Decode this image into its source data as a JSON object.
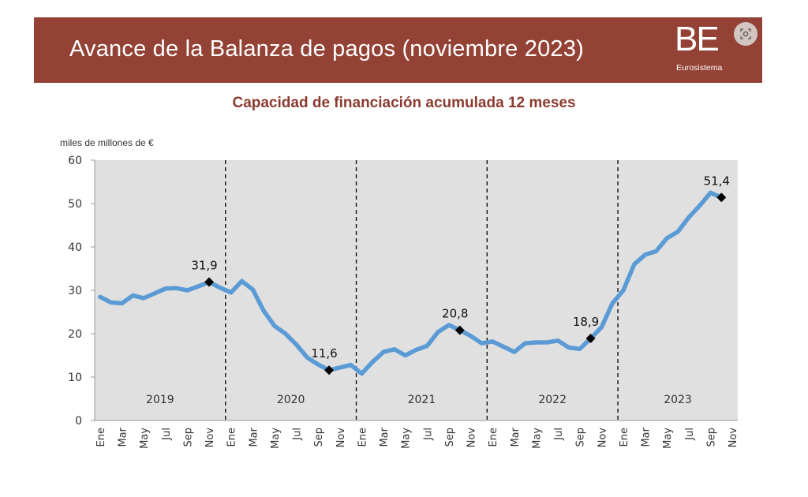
{
  "header": {
    "title": "Avance de la Balanza de pagos (noviembre 2023)",
    "logo_text": "BE",
    "logo_subtitle": "Eurosistema"
  },
  "icons": {
    "lens": "image-search-icon"
  },
  "colors": {
    "banner": "#934235",
    "title": "#8b3a2e",
    "line": "#5b9bd5",
    "plot_bg": "#e0e0e0"
  },
  "chart_data": {
    "type": "line",
    "title": "Capacidad de financiación acumulada 12 meses",
    "ylabel": "miles de millones de  €",
    "xlabel": "",
    "ylim": [
      0,
      60
    ],
    "yticks": [
      0,
      10,
      20,
      30,
      40,
      50,
      60
    ],
    "grid": false,
    "x_tick_labels": [
      "Ene",
      "Mar",
      "May",
      "Jul",
      "Sep",
      "Nov",
      "Ene",
      "Mar",
      "May",
      "Jul",
      "Sep",
      "Nov",
      "Ene",
      "Mar",
      "May",
      "Jul",
      "Sep",
      "Nov",
      "Ene",
      "Mar",
      "May",
      "Jul",
      "Sep",
      "Nov",
      "Ene",
      "Mar",
      "May",
      "Jul",
      "Sep",
      "Nov"
    ],
    "years": [
      "2019",
      "2020",
      "2021",
      "2022",
      "2023"
    ],
    "series": [
      {
        "values": [
          28.5,
          27.2,
          27.0,
          28.8,
          28.2,
          29.3,
          30.4,
          30.5,
          30.0,
          30.9,
          31.9,
          30.6,
          29.5,
          32.1,
          30.2,
          25.3,
          21.8,
          20.0,
          17.5,
          14.5,
          12.9,
          11.6,
          12.2,
          12.8,
          10.8,
          13.5,
          15.8,
          16.4,
          15.0,
          16.3,
          17.2,
          20.4,
          22.0,
          20.8,
          19.5,
          17.8,
          18.2,
          17.0,
          15.8,
          17.8,
          18.0,
          18.0,
          18.4,
          16.8,
          16.5,
          18.9,
          21.5,
          27.0,
          30.0,
          36.0,
          38.2,
          39.0,
          42.0,
          43.5,
          46.8,
          49.5,
          52.5,
          51.4
        ]
      }
    ],
    "annotations": [
      {
        "label": "31,9",
        "x_index": 10,
        "value": 31.9
      },
      {
        "label": "11,6",
        "x_index": 21,
        "value": 11.6
      },
      {
        "label": "20,8",
        "x_index": 33,
        "value": 20.8
      },
      {
        "label": "18,9",
        "x_index": 45,
        "value": 18.9
      },
      {
        "label": "51,4",
        "x_index": 57,
        "value": 51.4
      }
    ]
  }
}
